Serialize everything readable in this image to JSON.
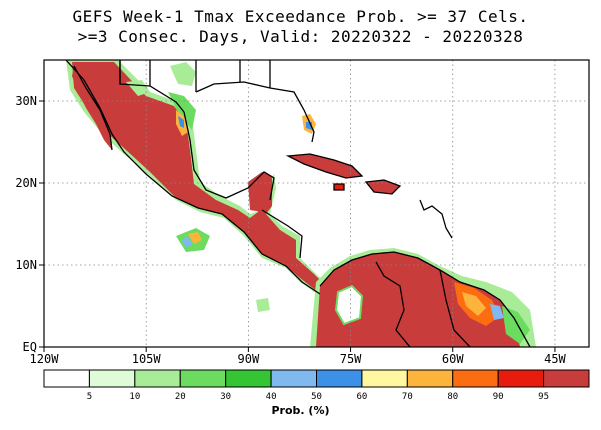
{
  "title": {
    "line1": "GEFS Week-1 Tmax Exceedance Prob. >= 37 Cels.",
    "line2": ">=3 Consec. Days, Valid: 20220322 - 20220328"
  },
  "map": {
    "lon_range": [
      -120,
      -40
    ],
    "lat_range": [
      0,
      35
    ],
    "x_ticks": [
      {
        "value": -120,
        "label": "120W"
      },
      {
        "value": -105,
        "label": "105W"
      },
      {
        "value": -90,
        "label": "90W"
      },
      {
        "value": -75,
        "label": "75W"
      },
      {
        "value": -60,
        "label": "60W"
      },
      {
        "value": -45,
        "label": "45W"
      }
    ],
    "y_ticks": [
      {
        "value": 0,
        "label": "EQ"
      },
      {
        "value": 10,
        "label": "10N"
      },
      {
        "value": 20,
        "label": "20N"
      },
      {
        "value": 30,
        "label": "30N"
      }
    ],
    "gridlines": "dotted"
  },
  "colorbar": {
    "title": "Prob. (%)",
    "labels": [
      "5",
      "10",
      "20",
      "30",
      "40",
      "50",
      "60",
      "70",
      "80",
      "90",
      "95"
    ],
    "colors": [
      "#ffffff",
      "#e0fbd8",
      "#a8ec98",
      "#6cdc60",
      "#34c434",
      "#80b8f0",
      "#3c90e8",
      "#fff8a0",
      "#fcb43c",
      "#fc6c10",
      "#e81c0c",
      "#c83c3c"
    ]
  }
}
